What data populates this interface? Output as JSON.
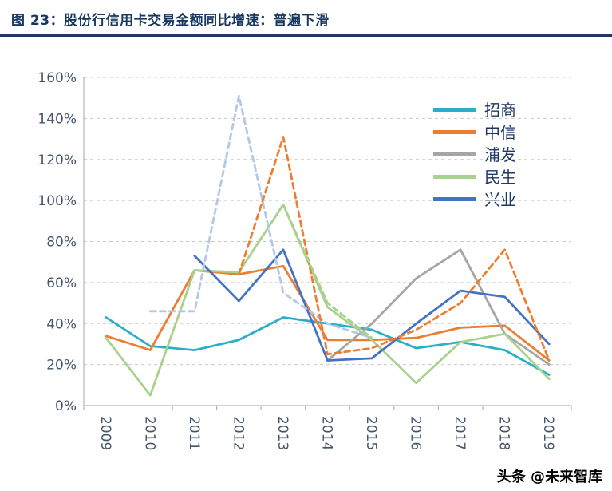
{
  "header": {
    "title": "图 23：股份行信用卡交易金额同比增速：普遍下滑"
  },
  "watermark": "头条 @未来智库",
  "chart_data": {
    "type": "line",
    "title": "股份行信用卡交易金额同比增速：普遍下滑",
    "x": [
      "2009",
      "2010",
      "2011",
      "2012",
      "2013",
      "2014",
      "2015",
      "2016",
      "2017",
      "2018",
      "2019"
    ],
    "xlabel": "",
    "ylabel": "",
    "ylim": [
      0,
      160
    ],
    "ytick_step": 20,
    "ytick_suffix": "%",
    "grid": "horizontal-dashed",
    "legend_position": "top-right",
    "x_label_rotation_deg": 90,
    "series": [
      {
        "name": "招商",
        "color": "#2BAECB",
        "dash": false,
        "in_legend": true,
        "values": [
          43,
          29,
          27,
          32,
          43,
          40,
          37,
          28,
          31,
          27,
          15
        ]
      },
      {
        "name": "中信",
        "color": "#ED7D31",
        "dash": false,
        "in_legend": true,
        "values": [
          34,
          27,
          66,
          64,
          68,
          32,
          32,
          33,
          38,
          39,
          22
        ]
      },
      {
        "name": "浦发",
        "color": "#A5A5A5",
        "dash": false,
        "in_legend": true,
        "values": [
          null,
          null,
          null,
          null,
          null,
          22,
          40,
          62,
          76,
          35,
          20
        ]
      },
      {
        "name": "民生",
        "color": "#A9D18E",
        "dash": false,
        "in_legend": true,
        "values": [
          33,
          5,
          66,
          65,
          98,
          48,
          32,
          11,
          31,
          35,
          13
        ]
      },
      {
        "name": "兴业",
        "color": "#4472C4",
        "dash": false,
        "in_legend": true,
        "values": [
          null,
          null,
          73,
          51,
          76,
          22,
          23,
          40,
          56,
          53,
          30
        ]
      },
      {
        "name": "招商-虚线",
        "color": "#B4C7E7",
        "dash": true,
        "in_legend": false,
        "values": [
          null,
          46,
          46,
          151,
          55,
          40,
          33,
          null,
          null,
          null,
          null
        ]
      },
      {
        "name": "中信-虚线",
        "color": "#ED7D31",
        "dash": true,
        "in_legend": false,
        "values": [
          null,
          null,
          null,
          64,
          131,
          25,
          28,
          37,
          50,
          76,
          22
        ]
      },
      {
        "name": "民生-虚线",
        "color": "#A9D18E",
        "dash": true,
        "in_legend": false,
        "values": [
          null,
          null,
          null,
          null,
          98,
          50,
          33,
          null,
          null,
          null,
          null
        ]
      }
    ]
  }
}
